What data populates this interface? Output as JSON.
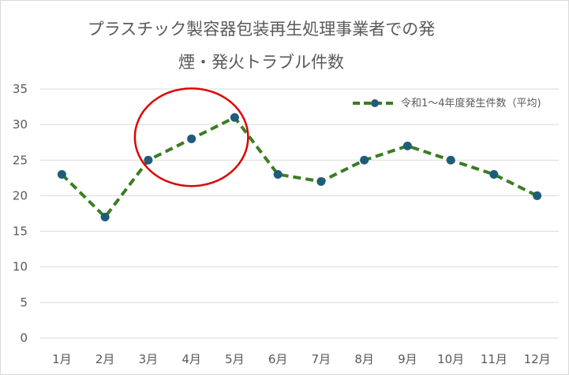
{
  "chart_data": {
    "type": "line",
    "title_lines": [
      "プラスチック製容器包装再生処理事業者での発",
      "煙・発火トラブル件数"
    ],
    "xlabel": "",
    "ylabel": "",
    "categories": [
      "1月",
      "2月",
      "3月",
      "4月",
      "5月",
      "6月",
      "7月",
      "8月",
      "9月",
      "10月",
      "11月",
      "12月"
    ],
    "series": [
      {
        "name": "令和1～4年度発生件数（平均)",
        "values": [
          23,
          17,
          25,
          28,
          31,
          23,
          22,
          25,
          27,
          25,
          23,
          20
        ],
        "color": "#3a7d22",
        "marker_color": "#1f5c7a",
        "line_style": "dashed"
      }
    ],
    "ylim": [
      0,
      35
    ],
    "yticks": [
      0,
      5,
      10,
      15,
      20,
      25,
      30,
      35
    ],
    "grid": true,
    "legend": "top-right",
    "annotation": {
      "type": "ellipse",
      "color": "#e00000",
      "covers_categories": [
        "3月",
        "4月",
        "5月"
      ]
    }
  }
}
